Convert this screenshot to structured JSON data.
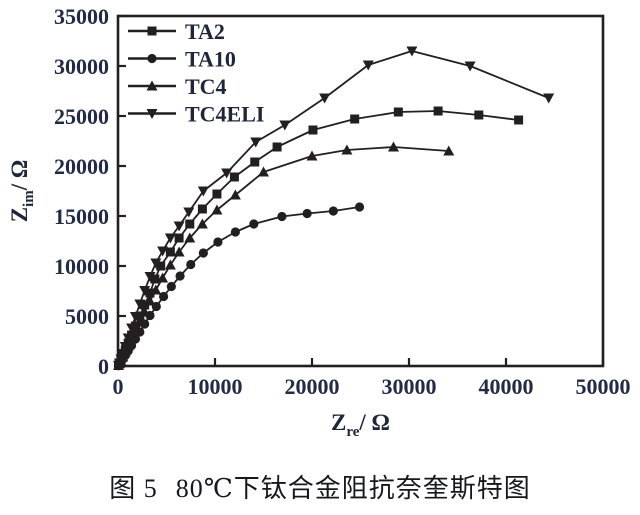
{
  "figure": {
    "caption": {
      "label": "图 5",
      "text": "80℃下钛合金阻抗奈奎斯特图"
    }
  },
  "chart_data": {
    "type": "line",
    "subtype": "nyquist-scatter-line",
    "title": "",
    "xlabel": {
      "base": "Z",
      "sub": "re",
      "unit": "/ Ω"
    },
    "ylabel": {
      "base": "Z",
      "sub": "im",
      "unit": "/ Ω"
    },
    "xlim": [
      0,
      50000
    ],
    "ylim": [
      0,
      35000
    ],
    "x_ticks": [
      0,
      10000,
      20000,
      30000,
      40000,
      50000
    ],
    "y_ticks": [
      0,
      5000,
      10000,
      15000,
      20000,
      25000,
      30000,
      35000
    ],
    "grid": false,
    "legend_position": "top-left",
    "colors": {
      "line": "#231f20",
      "text": "#232a46"
    },
    "series": [
      {
        "name": "TA2",
        "marker": "square",
        "points": [
          [
            50,
            60
          ],
          [
            150,
            250
          ],
          [
            300,
            600
          ],
          [
            500,
            1050
          ],
          [
            750,
            1600
          ],
          [
            1050,
            2300
          ],
          [
            1400,
            3100
          ],
          [
            1800,
            4000
          ],
          [
            2250,
            5000
          ],
          [
            2750,
            6100
          ],
          [
            3300,
            7300
          ],
          [
            3800,
            8700
          ],
          [
            4400,
            10000
          ],
          [
            5400,
            11400
          ],
          [
            6300,
            12800
          ],
          [
            7400,
            14200
          ],
          [
            8700,
            15700
          ],
          [
            10200,
            17200
          ],
          [
            12000,
            18900
          ],
          [
            14100,
            20400
          ],
          [
            16400,
            21900
          ],
          [
            20100,
            23600
          ],
          [
            24400,
            24700
          ],
          [
            28900,
            25400
          ],
          [
            33000,
            25500
          ],
          [
            37200,
            25100
          ],
          [
            41300,
            24600
          ]
        ]
      },
      {
        "name": "TA10",
        "marker": "circle",
        "points": [
          [
            50,
            40
          ],
          [
            150,
            160
          ],
          [
            300,
            380
          ],
          [
            500,
            680
          ],
          [
            750,
            1050
          ],
          [
            1050,
            1500
          ],
          [
            1400,
            2050
          ],
          [
            1800,
            2700
          ],
          [
            2250,
            3400
          ],
          [
            2750,
            4200
          ],
          [
            3300,
            5050
          ],
          [
            3950,
            5950
          ],
          [
            4700,
            6950
          ],
          [
            5500,
            7950
          ],
          [
            6400,
            9000
          ],
          [
            7500,
            10150
          ],
          [
            8800,
            11300
          ],
          [
            10300,
            12400
          ],
          [
            12100,
            13400
          ],
          [
            14000,
            14200
          ],
          [
            16900,
            14950
          ],
          [
            19500,
            15250
          ],
          [
            22200,
            15500
          ],
          [
            24900,
            15900
          ]
        ]
      },
      {
        "name": "TC4",
        "marker": "triangle-up",
        "points": [
          [
            50,
            50
          ],
          [
            150,
            220
          ],
          [
            300,
            500
          ],
          [
            500,
            900
          ],
          [
            750,
            1400
          ],
          [
            1050,
            2000
          ],
          [
            1400,
            2700
          ],
          [
            1800,
            3500
          ],
          [
            2250,
            4400
          ],
          [
            2750,
            5400
          ],
          [
            3300,
            6500
          ],
          [
            3900,
            7600
          ],
          [
            4600,
            8800
          ],
          [
            5400,
            10100
          ],
          [
            6300,
            11400
          ],
          [
            7400,
            12800
          ],
          [
            8700,
            14200
          ],
          [
            10200,
            15600
          ],
          [
            12100,
            17100
          ],
          [
            15000,
            19400
          ],
          [
            20000,
            21000
          ],
          [
            23600,
            21600
          ],
          [
            28400,
            21900
          ],
          [
            34100,
            21500
          ]
        ]
      },
      {
        "name": "TC4ELI",
        "marker": "triangle-down",
        "points": [
          [
            50,
            70
          ],
          [
            150,
            300
          ],
          [
            300,
            700
          ],
          [
            500,
            1250
          ],
          [
            750,
            1950
          ],
          [
            1050,
            2800
          ],
          [
            1400,
            3800
          ],
          [
            1800,
            4950
          ],
          [
            2250,
            6200
          ],
          [
            2750,
            7550
          ],
          [
            3300,
            8950
          ],
          [
            3900,
            10300
          ],
          [
            4600,
            11500
          ],
          [
            5400,
            12800
          ],
          [
            6300,
            14000
          ],
          [
            7300,
            15400
          ],
          [
            8800,
            17500
          ],
          [
            11200,
            19300
          ],
          [
            14200,
            22400
          ],
          [
            17200,
            24100
          ],
          [
            21300,
            26800
          ],
          [
            25800,
            30100
          ],
          [
            30300,
            31500
          ],
          [
            36300,
            30000
          ],
          [
            44400,
            26800
          ]
        ]
      }
    ]
  }
}
